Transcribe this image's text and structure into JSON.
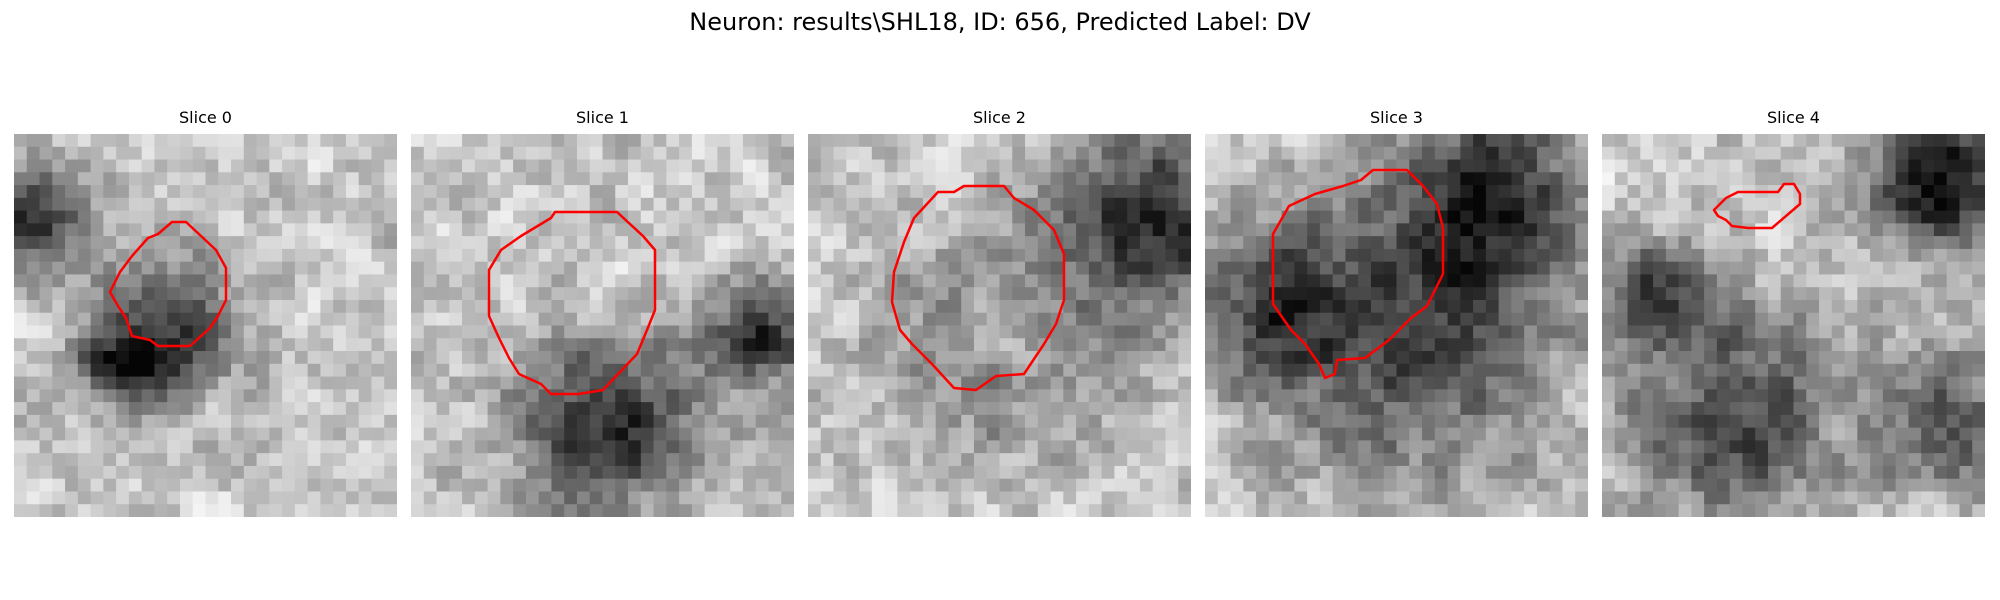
{
  "figure": {
    "title": "Neuron: results\\SHL18, ID: 656, Predicted Label: DV",
    "panels": [
      {
        "title": "Slice 0",
        "seed": 11,
        "dark_blob": 0.55
      },
      {
        "title": "Slice 1",
        "seed": 23,
        "dark_blob": 0.45
      },
      {
        "title": "Slice 2",
        "seed": 37,
        "dark_blob": 0.5
      },
      {
        "title": "Slice 3",
        "seed": 41,
        "dark_blob": 0.8
      },
      {
        "title": "Slice 4",
        "seed": 53,
        "dark_blob": 0.35
      }
    ],
    "contour_color": "#ff0000"
  }
}
